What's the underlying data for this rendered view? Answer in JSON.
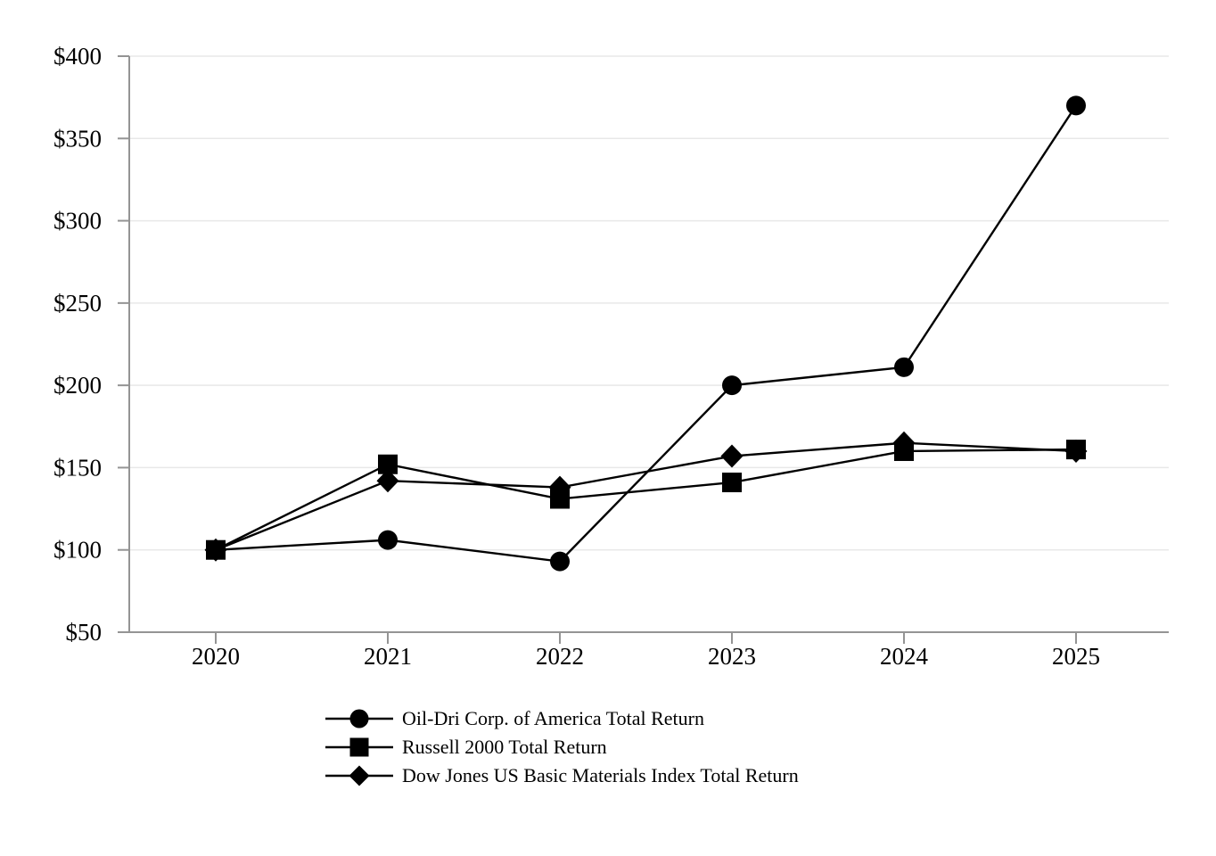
{
  "chart_data": {
    "type": "line",
    "title": "",
    "xlabel": "",
    "ylabel": "",
    "categories": [
      "2020",
      "2021",
      "2022",
      "2023",
      "2024",
      "2025"
    ],
    "series": [
      {
        "name": "Oil-Dri Corp. of America Total Return",
        "marker": "circle",
        "color": "#000000",
        "values": [
          100,
          106,
          93,
          200,
          211,
          370
        ]
      },
      {
        "name": "Russell 2000 Total Return",
        "marker": "square",
        "color": "#000000",
        "values": [
          100,
          152,
          131,
          141,
          160,
          161
        ]
      },
      {
        "name": "Dow Jones US Basic Materials Index Total Return",
        "marker": "diamond",
        "color": "#000000",
        "values": [
          100,
          142,
          138,
          157,
          165,
          160
        ]
      }
    ],
    "y_ticks": [
      {
        "value": 50,
        "label": "$50"
      },
      {
        "value": 100,
        "label": "$100"
      },
      {
        "value": 150,
        "label": "$150"
      },
      {
        "value": 200,
        "label": "$200"
      },
      {
        "value": 250,
        "label": "$250"
      },
      {
        "value": 300,
        "label": "$300"
      },
      {
        "value": 350,
        "label": "$350"
      },
      {
        "value": 400,
        "label": "$400"
      }
    ],
    "ylim": [
      50,
      400
    ],
    "grid": true,
    "legend_position": "bottom-left",
    "draw_order": [
      0,
      2,
      1
    ],
    "colors": {
      "line": "#000000",
      "marker": "#000000",
      "grid": "#e8e8e8",
      "axis": "#949494",
      "text": "#000000",
      "background": "#ffffff"
    }
  }
}
